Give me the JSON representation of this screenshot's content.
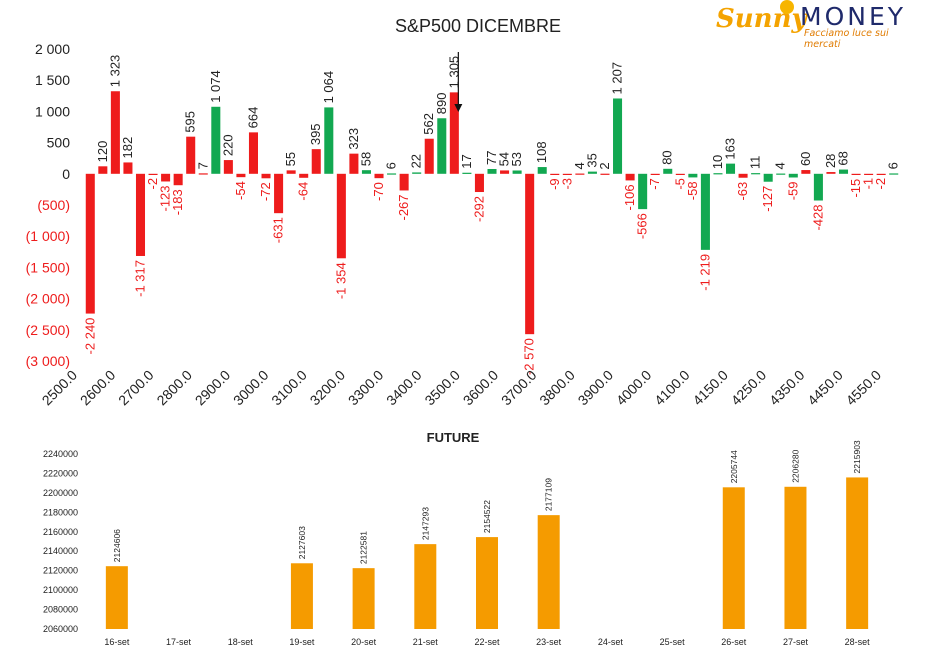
{
  "logo": {
    "brand_a": "Sunny",
    "brand_b": "MONEY",
    "tagline": "Facciamo luce sui mercati"
  },
  "colors": {
    "negative": "#ee1c1c",
    "positive": "#12a851",
    "up_red": "#ee1c1c",
    "future": "#f59b00",
    "neg_text": "#ee1c1c",
    "pos_text": "#222222"
  },
  "chart_data": [
    {
      "type": "bar",
      "title": "S&P500 DICEMBRE",
      "ylim": [
        -3000,
        2000
      ],
      "y_ticks": [
        2000,
        1500,
        1000,
        500,
        0,
        -500,
        -1000,
        -1500,
        -2000,
        -2500,
        -3000
      ],
      "y_tick_labels": [
        "2 000",
        "1 500",
        "1 000",
        "500",
        "0",
        "(500)",
        "(1 000)",
        "(1 500)",
        "(2 000)",
        "(2 500)",
        "(3 000)"
      ],
      "x_tick_labels": [
        "2500.0",
        "2600.0",
        "2700.0",
        "2800.0",
        "2900.0",
        "3000.0",
        "3100.0",
        "3200.0",
        "3300.0",
        "3400.0",
        "3500.0",
        "3600.0",
        "3700.0",
        "3800.0",
        "3900.0",
        "4000.0",
        "4100.0",
        "4150.0",
        "4250.0",
        "4350.0",
        "4450.0",
        "4550.0"
      ],
      "grid": false,
      "series": [
        {
          "color_rule": "value sign",
          "points": [
            {
              "v": -2240,
              "label": "-2 240",
              "c": "neg"
            },
            {
              "v": 120,
              "label": "120",
              "c": "red"
            },
            {
              "v": 1323,
              "label": "1 323",
              "c": "red"
            },
            {
              "v": 182,
              "label": "182",
              "c": "red"
            },
            {
              "v": -1317,
              "label": "-1 317",
              "c": "neg"
            },
            {
              "v": -2,
              "label": "-2",
              "c": "neg"
            },
            {
              "v": -123,
              "label": "-123",
              "c": "neg"
            },
            {
              "v": -183,
              "label": "-183",
              "c": "neg"
            },
            {
              "v": 595,
              "label": "595",
              "c": "red"
            },
            {
              "v": 7,
              "label": "7",
              "c": "red"
            },
            {
              "v": 1074,
              "label": "1 074",
              "c": "green"
            },
            {
              "v": 220,
              "label": "220",
              "c": "red"
            },
            {
              "v": -54,
              "label": "-54",
              "c": "neg"
            },
            {
              "v": 664,
              "label": "664",
              "c": "red"
            },
            {
              "v": -72,
              "label": "-72",
              "c": "neg"
            },
            {
              "v": -631,
              "label": "-631",
              "c": "neg"
            },
            {
              "v": 55,
              "label": "55",
              "c": "red"
            },
            {
              "v": -64,
              "label": "-64",
              "c": "neg"
            },
            {
              "v": 395,
              "label": "395",
              "c": "red"
            },
            {
              "v": 1064,
              "label": "1 064",
              "c": "green"
            },
            {
              "v": -1354,
              "label": "-1 354",
              "c": "neg"
            },
            {
              "v": 323,
              "label": "323",
              "c": "red"
            },
            {
              "v": 58,
              "label": "58",
              "c": "green"
            },
            {
              "v": -70,
              "label": "-70",
              "c": "neg"
            },
            {
              "v": 6,
              "label": "6",
              "c": "green"
            },
            {
              "v": -267,
              "label": "-267",
              "c": "neg"
            },
            {
              "v": 22,
              "label": "22",
              "c": "green"
            },
            {
              "v": 562,
              "label": "562",
              "c": "red"
            },
            {
              "v": 890,
              "label": "890",
              "c": "green"
            },
            {
              "v": 1305,
              "label": "1 305",
              "c": "red"
            },
            {
              "v": 17,
              "label": "17",
              "c": "green"
            },
            {
              "v": -292,
              "label": "-292",
              "c": "neg"
            },
            {
              "v": 77,
              "label": "77",
              "c": "green"
            },
            {
              "v": 54,
              "label": "54",
              "c": "red"
            },
            {
              "v": 53,
              "label": "53",
              "c": "green"
            },
            {
              "v": -2570,
              "label": "-2 570",
              "c": "neg"
            },
            {
              "v": 108,
              "label": "108",
              "c": "green"
            },
            {
              "v": -9,
              "label": "-9",
              "c": "neg"
            },
            {
              "v": -3,
              "label": "-3",
              "c": "neg"
            },
            {
              "v": 4,
              "label": "4",
              "c": "red"
            },
            {
              "v": 35,
              "label": "35",
              "c": "green"
            },
            {
              "v": 2,
              "label": "2",
              "c": "red"
            },
            {
              "v": 1207,
              "label": "1 207",
              "c": "green"
            },
            {
              "v": -106,
              "label": "-106",
              "c": "neg"
            },
            {
              "v": -566,
              "label": "-566",
              "c": "negG"
            },
            {
              "v": -7,
              "label": "-7",
              "c": "neg"
            },
            {
              "v": 80,
              "label": "80",
              "c": "green"
            },
            {
              "v": -5,
              "label": "-5",
              "c": "neg"
            },
            {
              "v": -58,
              "label": "-58",
              "c": "negG"
            },
            {
              "v": -1219,
              "label": "-1 219",
              "c": "negG"
            },
            {
              "v": 10,
              "label": "10",
              "c": "green"
            },
            {
              "v": 163,
              "label": "163",
              "c": "green"
            },
            {
              "v": -63,
              "label": "-63",
              "c": "neg"
            },
            {
              "v": 11,
              "label": "11",
              "c": "green"
            },
            {
              "v": -127,
              "label": "-127",
              "c": "negG"
            },
            {
              "v": 4,
              "label": "4",
              "c": "green"
            },
            {
              "v": -59,
              "label": "-59",
              "c": "negG"
            },
            {
              "v": 60,
              "label": "60",
              "c": "red"
            },
            {
              "v": -428,
              "label": "-428",
              "c": "negG"
            },
            {
              "v": 28,
              "label": "28",
              "c": "red"
            },
            {
              "v": 68,
              "label": "68",
              "c": "green"
            },
            {
              "v": -15,
              "label": "-15",
              "c": "neg"
            },
            {
              "v": -1,
              "label": "-1",
              "c": "neg"
            },
            {
              "v": -2,
              "label": "-2",
              "c": "neg"
            },
            {
              "v": 6,
              "label": "6",
              "c": "green"
            }
          ]
        }
      ],
      "annotations": [
        {
          "type": "arrow",
          "at_index": 29
        }
      ]
    },
    {
      "type": "bar",
      "title": "FUTURE",
      "ylim": [
        2060000,
        2240000
      ],
      "y_ticks": [
        2060000,
        2080000,
        2100000,
        2120000,
        2140000,
        2160000,
        2180000,
        2200000,
        2220000,
        2240000
      ],
      "y_tick_labels": [
        "2060000",
        "2080000",
        "2100000",
        "2120000",
        "2140000",
        "2160000",
        "2180000",
        "2200000",
        "2220000",
        "2240000"
      ],
      "categories": [
        "16-set",
        "17-set",
        "18-set",
        "19-set",
        "20-set",
        "21-set",
        "22-set",
        "23-set",
        "24-set",
        "25-set",
        "26-set",
        "27-set",
        "28-set"
      ],
      "values": [
        2124606,
        null,
        null,
        2127603,
        2122581,
        2147293,
        2154522,
        2177109,
        null,
        null,
        2205744,
        2206280,
        2215903
      ],
      "labels": [
        "2124606",
        "",
        "",
        "2127603",
        "2122581",
        "2147293",
        "2154522",
        "2177109",
        "",
        "",
        "2205744",
        "2206280",
        "2215903"
      ],
      "grid": false
    }
  ]
}
